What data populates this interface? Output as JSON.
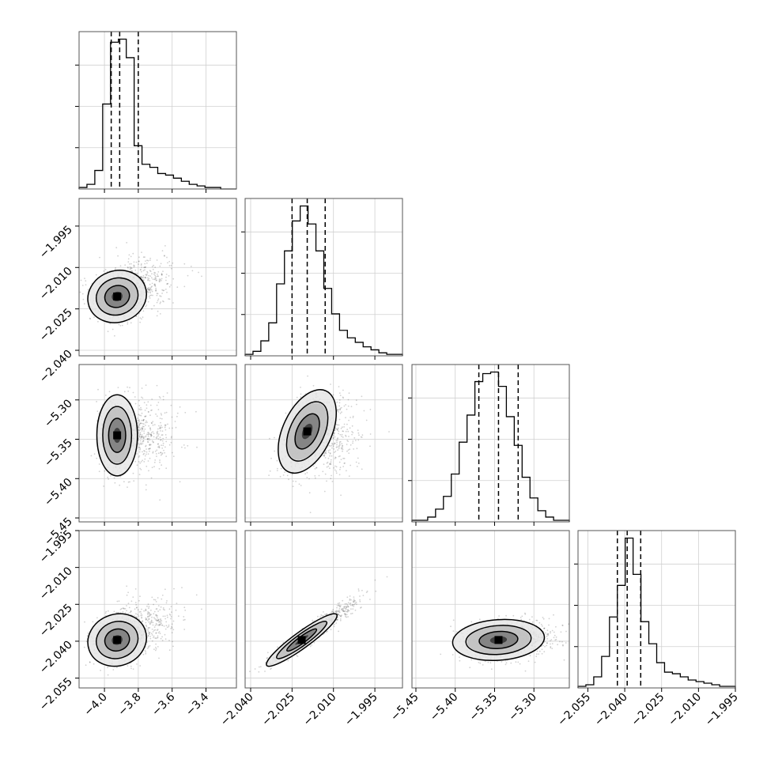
{
  "chart_data": {
    "type": "corner",
    "grid": true,
    "params": [
      {
        "center": -3.91,
        "sigma": 0.06,
        "range": [
          -4.15,
          -3.22
        ],
        "quantiles": [
          -3.96,
          -3.91,
          -3.8
        ],
        "ticks": [
          -4.0,
          -3.8,
          -3.6,
          -3.4
        ],
        "tick_labels": [
          "−4.0",
          "−3.8",
          "−3.6",
          "−3.4"
        ],
        "hist": [
          1,
          3,
          12,
          55,
          95,
          97,
          85,
          28,
          16,
          14,
          10,
          9,
          7,
          5,
          3,
          2,
          1,
          1,
          0,
          0
        ]
      },
      {
        "center": -2.0195,
        "sigma": 0.004,
        "range": [
          -2.042,
          -1.985
        ],
        "quantiles": [
          -2.025,
          -2.0195,
          -2.013
        ],
        "ticks": [
          -2.04,
          -2.025,
          -2.01,
          -1.995
        ],
        "tick_labels": [
          "−2.040",
          "−2.025",
          "−2.010",
          "−1.995"
        ],
        "hist": [
          1,
          3,
          10,
          22,
          48,
          70,
          90,
          100,
          88,
          70,
          45,
          28,
          17,
          12,
          9,
          6,
          4,
          2,
          1,
          1
        ]
      },
      {
        "center": -5.345,
        "sigma": 0.025,
        "range": [
          -5.455,
          -5.255
        ],
        "quantiles": [
          -5.37,
          -5.345,
          -5.32
        ],
        "ticks": [
          -5.45,
          -5.4,
          -5.35,
          -5.3
        ],
        "tick_labels": [
          "−5.45",
          "−5.40",
          "−5.35",
          "−5.30"
        ],
        "hist": [
          1,
          1,
          3,
          8,
          16,
          30,
          50,
          67,
          88,
          93,
          94,
          85,
          66,
          48,
          28,
          15,
          7,
          3,
          1,
          1
        ]
      },
      {
        "center": -2.039,
        "sigma": 0.003,
        "range": [
          -2.059,
          -1.995
        ],
        "quantiles": [
          -2.043,
          -2.039,
          -2.0335
        ],
        "ticks": [
          -2.055,
          -2.04,
          -2.025,
          -2.01,
          -1.995
        ],
        "tick_labels": [
          "−2.055",
          "−2.040",
          "−2.025",
          "−2.010",
          "−1.995"
        ],
        "hist": [
          1,
          2,
          7,
          20,
          45,
          65,
          95,
          72,
          42,
          28,
          16,
          10,
          9,
          7,
          5,
          4,
          3,
          2,
          1,
          1
        ]
      }
    ],
    "pairs": [
      {
        "row": 1,
        "col": 0,
        "shape": "blob",
        "center": [
          -3.925,
          -2.0205
        ]
      },
      {
        "row": 2,
        "col": 0,
        "shape": "vertical-ellipse",
        "center": [
          -3.925,
          -5.345
        ]
      },
      {
        "row": 2,
        "col": 1,
        "shape": "tilted-ellipse",
        "center": [
          -2.0195,
          -5.34
        ]
      },
      {
        "row": 3,
        "col": 0,
        "shape": "blob",
        "center": [
          -3.925,
          -2.0395
        ]
      },
      {
        "row": 3,
        "col": 1,
        "shape": "narrow-diagonal",
        "center": [
          -2.0215,
          -2.0395
        ]
      },
      {
        "row": 3,
        "col": 2,
        "shape": "horizontal-ellipse",
        "center": [
          -5.345,
          -2.0395
        ]
      }
    ]
  }
}
